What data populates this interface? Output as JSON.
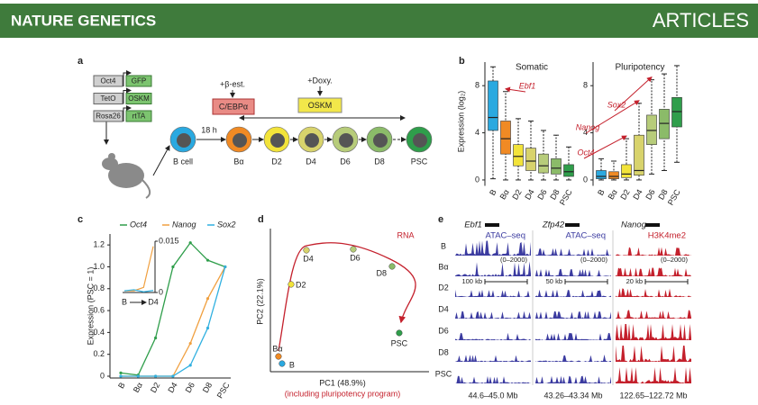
{
  "header": {
    "journal": "NATURE GENETICS",
    "section": "ARTICLES"
  },
  "panel_a": {
    "label": "a",
    "constructs": [
      [
        "Oct4",
        "GFP"
      ],
      [
        "TetO",
        "OSKM"
      ],
      [
        "Rosa26",
        "rtTA"
      ]
    ],
    "beta_est": "+β-est.",
    "cebpa": "C/EBPα",
    "time": "18 h",
    "doxy": "+Doxy.",
    "oskm": "OSKM",
    "cells": [
      "B cell",
      "Bα",
      "D2",
      "D4",
      "D6",
      "D8",
      "PSC"
    ]
  },
  "panel_b": {
    "label": "b",
    "chart_data": {
      "type": "box",
      "y_label": "Expression (log₂)",
      "ylim": [
        -0.5,
        10
      ],
      "yticks": [
        0,
        4,
        8
      ],
      "categories": [
        "B",
        "Bα",
        "D2",
        "D4",
        "D6",
        "D8",
        "PSC"
      ],
      "colors": [
        "#2aa9e0",
        "#f08a24",
        "#f2e33a",
        "#d8d36c",
        "#b7cc7a",
        "#8bbb69",
        "#2f9e4b"
      ],
      "plots": [
        {
          "title": "Somatic",
          "annotations": [
            "Ebf1"
          ],
          "boxes": [
            {
              "min": 0.1,
              "q1": 4.2,
              "median": 5.3,
              "q3": 8.4,
              "max": 9.6
            },
            {
              "min": 0,
              "q1": 2.2,
              "median": 3.5,
              "q3": 5.0,
              "max": 7.5
            },
            {
              "min": 0,
              "q1": 1.2,
              "median": 2.0,
              "q3": 3.0,
              "max": 5.2
            },
            {
              "min": 0,
              "q1": 0.8,
              "median": 1.6,
              "q3": 2.7,
              "max": 5.0
            },
            {
              "min": 0,
              "q1": 0.6,
              "median": 1.2,
              "q3": 2.2,
              "max": 4.2
            },
            {
              "min": 0,
              "q1": 0.5,
              "median": 1.0,
              "q3": 1.8,
              "max": 3.8
            },
            {
              "min": 0,
              "q1": 0.3,
              "median": 0.7,
              "q3": 1.3,
              "max": 2.8
            }
          ]
        },
        {
          "title": "Pluripotency",
          "annotations": [
            "Oct4",
            "Nanog",
            "Sox2"
          ],
          "boxes": [
            {
              "min": 0,
              "q1": 0.1,
              "median": 0.3,
              "q3": 0.8,
              "max": 1.8
            },
            {
              "min": 0,
              "q1": 0.1,
              "median": 0.3,
              "q3": 0.7,
              "max": 1.6
            },
            {
              "min": 0,
              "q1": 0.2,
              "median": 0.5,
              "q3": 1.3,
              "max": 3.5
            },
            {
              "min": 0,
              "q1": 0.4,
              "median": 0.8,
              "q3": 3.8,
              "max": 6.5
            },
            {
              "min": 0.5,
              "q1": 3.0,
              "median": 4.2,
              "q3": 5.5,
              "max": 8.5
            },
            {
              "min": 0.8,
              "q1": 3.5,
              "median": 4.8,
              "q3": 6.0,
              "max": 9.0
            },
            {
              "min": 1.5,
              "q1": 4.5,
              "median": 5.8,
              "q3": 7.0,
              "max": 9.7
            }
          ]
        }
      ]
    }
  },
  "panel_c": {
    "label": "c",
    "chart_data": {
      "type": "line",
      "y_label": "Expression (PSC = 1)",
      "categories": [
        "B",
        "Bα",
        "D2",
        "D4",
        "D6",
        "D8",
        "PSC"
      ],
      "ylim": [
        0,
        1.3
      ],
      "yticks": [
        0,
        0.2,
        0.4,
        0.6,
        0.8,
        {
          "value": 1,
          "label": "1.0"
        },
        1.2
      ],
      "series": [
        {
          "name": "Oct4",
          "color": "#2f9e4b",
          "values": [
            0.03,
            0.01,
            0.35,
            1.0,
            1.22,
            1.06,
            1.0
          ]
        },
        {
          "name": "Nanog",
          "color": "#f0a040",
          "values": [
            0,
            0,
            0,
            0,
            0.3,
            0.71,
            1.0
          ]
        },
        {
          "name": "Sox2",
          "color": "#30b0e0",
          "values": [
            0,
            0,
            0,
            0,
            0.1,
            0.44,
            1.0
          ]
        }
      ],
      "inset": {
        "categories": [
          "B",
          null,
          null,
          "D4"
        ],
        "ylim": [
          0,
          0.015
        ],
        "yticks": [
          0,
          0.015
        ],
        "series": [
          {
            "color": "#f0a040",
            "values": [
              0.0005,
              0.0005,
              0.0015,
              0.0135
            ]
          },
          {
            "color": "#30b0e0",
            "values": [
              0.0005,
              0.0008,
              0.0002,
              0.0006
            ]
          }
        ]
      }
    }
  },
  "panel_d": {
    "label": "d",
    "chart_data": {
      "type": "scatter",
      "title": "RNA",
      "x_label": "PC1 (48.9%)",
      "x_sublabel": "(including pluripotency program)",
      "y_label": "PC2 (22.1%)",
      "xlim": [
        0,
        100
      ],
      "ylim": [
        0,
        100
      ],
      "labels": [
        "B",
        "Bα",
        "D2",
        "D4",
        "D6",
        "D8",
        "PSC"
      ],
      "x": [
        4.8,
        2.4,
        10.9,
        21.2,
        52.7,
        78.8,
        83.6
      ],
      "values": [
        4.0,
        9.3,
        62.7,
        88.0,
        88.7,
        76.0,
        26.7
      ],
      "colors": [
        "#2aa9e0",
        "#f08a24",
        "#f2e33a",
        "#d8d36c",
        "#b7cc7a",
        "#8bbb69",
        "#2f9e4b"
      ]
    }
  },
  "panel_e": {
    "label": "e",
    "rows": [
      "B",
      "Bα",
      "D2",
      "D4",
      "D6",
      "D8",
      "PSC"
    ],
    "columns": [
      {
        "gene": "Ebf1",
        "assay": "ATAC–seq",
        "range": "(0–2000)",
        "scale": "100 kb",
        "coords": "44.6–45.0 Mb",
        "color": "#3b3ba0"
      },
      {
        "gene": "Zfp42",
        "assay": "ATAC–seq",
        "range": "(0–2000)",
        "scale": "50 kb",
        "coords": "43.26–43.34 Mb",
        "color": "#3b3ba0"
      },
      {
        "gene": "Nanog",
        "assay": "H3K4me2",
        "range": "(0–2000)",
        "scale": "20 kb",
        "coords": "122.65–122.72 Mb",
        "color": "#c4202c"
      }
    ]
  }
}
